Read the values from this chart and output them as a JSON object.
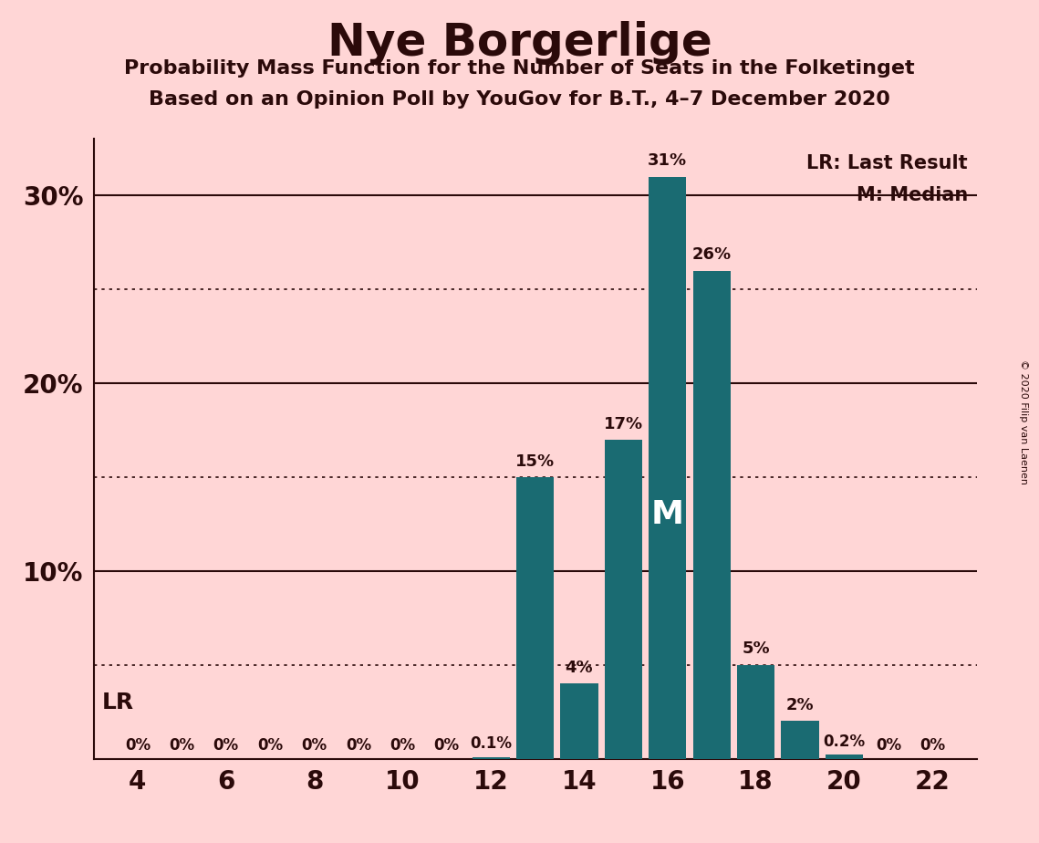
{
  "title": "Nye Borgerlige",
  "subtitle1": "Probability Mass Function for the Number of Seats in the Folketinget",
  "subtitle2": "Based on an Opinion Poll by YouGov for B.T., 4–7 December 2020",
  "copyright": "© 2020 Filip van Laenen",
  "background_color": "#FFD6D6",
  "bar_color": "#1a6b72",
  "text_color": "#2b0a0a",
  "seats": [
    4,
    5,
    6,
    7,
    8,
    9,
    10,
    11,
    12,
    13,
    14,
    15,
    16,
    17,
    18,
    19,
    20,
    21,
    22
  ],
  "probabilities": [
    0.0,
    0.0,
    0.0,
    0.0,
    0.0,
    0.0,
    0.0,
    0.0,
    0.1,
    15.0,
    4.0,
    17.0,
    31.0,
    26.0,
    5.0,
    2.0,
    0.2,
    0.0,
    0.0
  ],
  "bar_labels": [
    "0%",
    "0%",
    "0%",
    "0%",
    "0%",
    "0%",
    "0%",
    "0%",
    "0.1%",
    "15%",
    "4%",
    "17%",
    "31%",
    "26%",
    "5%",
    "2%",
    "0.2%",
    "0%",
    "0%"
  ],
  "x_ticks": [
    4,
    6,
    8,
    10,
    12,
    14,
    16,
    18,
    20,
    22
  ],
  "ylim": [
    0,
    33
  ],
  "yticks": [
    0,
    10,
    20,
    30
  ],
  "ytick_labels": [
    "",
    "10%",
    "20%",
    "30%"
  ],
  "solid_lines": [
    10,
    20,
    30
  ],
  "dotted_lines": [
    5,
    15,
    25
  ],
  "lr_seat": 4,
  "lr_label": "LR",
  "median_seat": 16,
  "median_label": "M",
  "legend_lr": "LR: Last Result",
  "legend_m": "M: Median"
}
